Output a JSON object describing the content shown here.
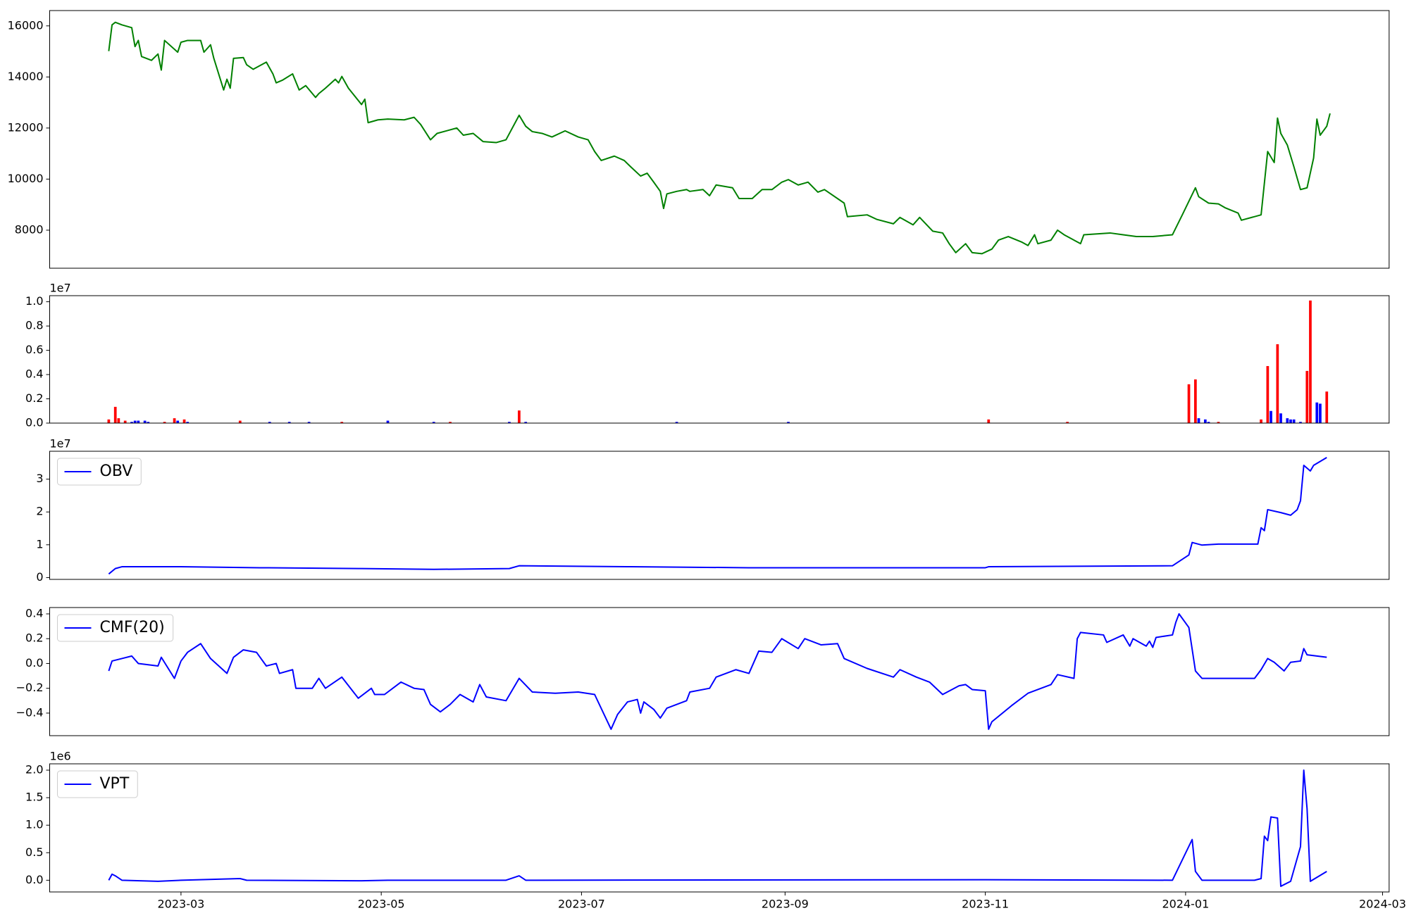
{
  "chart_data": {
    "type": "panels",
    "xlim": [
      19377,
      19785
    ],
    "xticks": [
      {
        "value": 19417,
        "label": "2023-03"
      },
      {
        "value": 19478,
        "label": "2023-05"
      },
      {
        "value": 19539,
        "label": "2023-07"
      },
      {
        "value": 19601,
        "label": "2023-09"
      },
      {
        "value": 19662,
        "label": "2023-11"
      },
      {
        "value": 19723,
        "label": "2024-01"
      },
      {
        "value": 19783,
        "label": "2024-03"
      }
    ],
    "panels": [
      {
        "type": "line",
        "x": [
          19395,
          19396,
          19397,
          19399,
          19402,
          19403,
          19404,
          19405,
          19408,
          19410,
          19411,
          19412,
          19416,
          19417,
          19419,
          19423,
          19424,
          19426,
          19427,
          19430,
          19431,
          19432,
          19433,
          19436,
          19437,
          19439,
          19443,
          19445,
          19446,
          19448,
          19451,
          19453,
          19455,
          19458,
          19459,
          19461,
          19464,
          19465,
          19466,
          19468,
          19472,
          19473,
          19474,
          19477,
          19480,
          19485,
          19488,
          19490,
          19493,
          19495,
          19501,
          19503,
          19506,
          19509,
          19513,
          19516,
          19520,
          19522,
          19524,
          19527,
          19530,
          19534,
          19538,
          19541,
          19543,
          19545,
          19549,
          19552,
          19554,
          19557,
          19559,
          19561,
          19563,
          19564,
          19565,
          19568,
          19571,
          19572,
          19576,
          19578,
          19580,
          19585,
          19587,
          19591,
          19594,
          19597,
          19600,
          19602,
          19605,
          19608,
          19611,
          19613,
          19619,
          19620,
          19626,
          19629,
          19634,
          19636,
          19640,
          19642,
          19646,
          19649,
          19651,
          19653,
          19656,
          19658,
          19661,
          19664,
          19666,
          19669,
          19673,
          19675,
          19677,
          19678,
          19682,
          19684,
          19686,
          19691,
          19692,
          19700,
          19704,
          19708,
          19713,
          19719,
          19722,
          19726,
          19727,
          19730,
          19733,
          19735,
          19739,
          19740,
          19746,
          19748,
          19750,
          19751,
          19752,
          19754,
          19756,
          19758,
          19760,
          19762,
          19763,
          19764,
          19766,
          19767
        ],
        "series": [
          {
            "color": "#008000",
            "values": [
              15010,
              16040,
              16140,
              16040,
              15930,
              15190,
              15430,
              14800,
              14650,
              14900,
              14270,
              15430,
              14970,
              15360,
              15430,
              15430,
              14970,
              15260,
              14730,
              13490,
              13910,
              13560,
              14730,
              14760,
              14480,
              14300,
              14580,
              14120,
              13770,
              13880,
              14120,
              13490,
              13660,
              13200,
              13350,
              13560,
              13910,
              13770,
              14020,
              13560,
              12920,
              13130,
              12210,
              12320,
              12350,
              12320,
              12420,
              12140,
              11540,
              11790,
              12000,
              11720,
              11790,
              11470,
              11430,
              11540,
              12500,
              12070,
              11860,
              11790,
              11650,
              11890,
              11650,
              11540,
              11080,
              10730,
              10900,
              10730,
              10480,
              10120,
              10230,
              9880,
              9520,
              8850,
              9420,
              9520,
              9590,
              9520,
              9590,
              9350,
              9770,
              9660,
              9240,
              9240,
              9590,
              9590,
              9880,
              9980,
              9770,
              9880,
              9490,
              9590,
              9060,
              8530,
              8600,
              8420,
              8250,
              8500,
              8210,
              8500,
              7960,
              7890,
              7470,
              7120,
              7470,
              7120,
              7080,
              7260,
              7610,
              7750,
              7540,
              7400,
              7820,
              7470,
              7610,
              8000,
              7820,
              7470,
              7820,
              7890,
              7820,
              7750,
              7750,
              7820,
              8600,
              9660,
              9310,
              9060,
              9030,
              8880,
              8670,
              8390,
              8600,
              11080,
              10650,
              12390,
              11790,
              11330,
              10480,
              9590,
              9660,
              10830,
              12350,
              11720,
              12070,
              12570
            ]
          }
        ],
        "ylim": [
          6510,
          16600
        ],
        "yticks": [
          8000,
          10000,
          12000,
          14000,
          16000
        ]
      },
      {
        "type": "bar",
        "x": [
          19395,
          19397,
          19398,
          19400,
          19402,
          19403,
          19404,
          19406,
          19407,
          19412,
          19415,
          19416,
          19418,
          19419,
          19435,
          19444,
          19450,
          19456,
          19466,
          19480,
          19494,
          19499,
          19517,
          19520,
          19522,
          19568,
          19602,
          19663,
          19687,
          19724,
          19726,
          19727,
          19729,
          19730,
          19733,
          19746,
          19748,
          19749,
          19751,
          19752,
          19754,
          19755,
          19756,
          19758,
          19760,
          19761,
          19763,
          19764,
          19766
        ],
        "values": [
          300000,
          1340000,
          400000,
          200000,
          100000,
          200000,
          200000,
          200000,
          100000,
          100000,
          400000,
          200000,
          300000,
          100000,
          200000,
          100000,
          100000,
          100000,
          100000,
          200000,
          100000,
          100000,
          100000,
          1040000,
          100000,
          100000,
          100000,
          300000,
          100000,
          3200000,
          3600000,
          400000,
          300000,
          100000,
          100000,
          300000,
          4700000,
          1000000,
          6500000,
          800000,
          400000,
          300000,
          300000,
          100000,
          4300000,
          10100000,
          1700000,
          1600000,
          2600000
        ],
        "colors": [
          "red",
          "red",
          "red",
          "red",
          "blue",
          "blue",
          "blue",
          "blue",
          "blue",
          "red",
          "red",
          "blue",
          "red",
          "blue",
          "red",
          "blue",
          "blue",
          "blue",
          "red",
          "blue",
          "blue",
          "red",
          "blue",
          "red",
          "blue",
          "blue",
          "blue",
          "red",
          "red",
          "red",
          "red",
          "blue",
          "blue",
          "blue",
          "red",
          "red",
          "red",
          "blue",
          "red",
          "blue",
          "blue",
          "blue",
          "blue",
          "blue",
          "red",
          "red",
          "blue",
          "blue",
          "red"
        ],
        "ylim": [
          0,
          10500000
        ],
        "offset_label": "1e7",
        "yticks": [
          {
            "value": 0,
            "label": "0.0"
          },
          {
            "value": 2000000,
            "label": "0.2"
          },
          {
            "value": 4000000,
            "label": "0.4"
          },
          {
            "value": 6000000,
            "label": "0.6"
          },
          {
            "value": 8000000,
            "label": "0.8"
          },
          {
            "value": 10000000,
            "label": "1.0"
          }
        ]
      },
      {
        "type": "line",
        "legend": "upper left",
        "offset_label": "1e7",
        "x": [
          19395,
          19397,
          19399,
          19417,
          19441,
          19472,
          19494,
          19517,
          19520,
          19554,
          19590,
          19662,
          19663,
          19719,
          19724,
          19725,
          19728,
          19733,
          19745,
          19746,
          19747,
          19748,
          19752,
          19755,
          19757,
          19758,
          19759,
          19761,
          19762,
          19766
        ],
        "series": [
          {
            "name": "OBV",
            "color": "#0000ff",
            "values": [
              1100000,
              2750000,
              3300000,
              3300000,
              3000000,
              2750000,
              2500000,
              2750000,
              3600000,
              3300000,
              3000000,
              3000000,
              3300000,
              3600000,
              6900000,
              10700000,
              9900000,
              10200000,
              10200000,
              15200000,
              14300000,
              20700000,
              19800000,
              19000000,
              20700000,
              23400000,
              34200000,
              32500000,
              34200000,
              36600000
            ]
          }
        ],
        "ylim": [
          -550000,
          38500000
        ],
        "yticks": [
          0,
          {
            "value": 10000000,
            "label": "1"
          },
          {
            "value": 20000000,
            "label": "2"
          },
          {
            "value": 30000000,
            "label": "3"
          }
        ]
      },
      {
        "type": "line",
        "legend": "upper left",
        "x": [
          19395,
          19396,
          19399,
          19402,
          19404,
          19410,
          19411,
          19415,
          19417,
          19419,
          19423,
          19426,
          19431,
          19433,
          19436,
          19440,
          19443,
          19446,
          19447,
          19451,
          19452,
          19457,
          19459,
          19461,
          19466,
          19471,
          19475,
          19476,
          19479,
          19484,
          19488,
          19491,
          19493,
          19496,
          19499,
          19502,
          19506,
          19508,
          19510,
          19516,
          19520,
          19524,
          19531,
          19538,
          19543,
          19548,
          19550,
          19553,
          19556,
          19557,
          19558,
          19561,
          19563,
          19565,
          19571,
          19572,
          19578,
          19580,
          19586,
          19590,
          19593,
          19597,
          19600,
          19605,
          19607,
          19612,
          19617,
          19619,
          19626,
          19634,
          19636,
          19641,
          19645,
          19649,
          19654,
          19656,
          19658,
          19662,
          19663,
          19664,
          19670,
          19675,
          19682,
          19684,
          19689,
          19690,
          19691,
          19698,
          19699,
          19704,
          19706,
          19707,
          19711,
          19712,
          19713,
          19714,
          19719,
          19720,
          19721,
          19724,
          19726,
          19728,
          19744,
          19746,
          19748,
          19750,
          19753,
          19755,
          19758,
          19759,
          19760,
          19766
        ],
        "series": [
          {
            "name": "CMF(20)",
            "color": "#0000ff",
            "values": [
              -0.06,
              0.02,
              0.04,
              0.06,
              0,
              -0.02,
              0.05,
              -0.12,
              0.02,
              0.09,
              0.16,
              0.04,
              -0.08,
              0.05,
              0.11,
              0.09,
              -0.02,
              0,
              -0.08,
              -0.05,
              -0.2,
              -0.2,
              -0.12,
              -0.2,
              -0.11,
              -0.28,
              -0.2,
              -0.25,
              -0.25,
              -0.15,
              -0.2,
              -0.21,
              -0.33,
              -0.39,
              -0.33,
              -0.25,
              -0.31,
              -0.17,
              -0.27,
              -0.3,
              -0.12,
              -0.23,
              -0.24,
              -0.23,
              -0.25,
              -0.53,
              -0.41,
              -0.31,
              -0.29,
              -0.4,
              -0.31,
              -0.37,
              -0.44,
              -0.36,
              -0.3,
              -0.23,
              -0.2,
              -0.11,
              -0.05,
              -0.08,
              0.1,
              0.09,
              0.2,
              0.12,
              0.2,
              0.15,
              0.16,
              0.04,
              -0.04,
              -0.11,
              -0.05,
              -0.11,
              -0.15,
              -0.25,
              -0.18,
              -0.17,
              -0.21,
              -0.22,
              -0.53,
              -0.47,
              -0.34,
              -0.24,
              -0.17,
              -0.09,
              -0.12,
              0.2,
              0.25,
              0.23,
              0.17,
              0.23,
              0.14,
              0.2,
              0.14,
              0.18,
              0.13,
              0.21,
              0.23,
              0.33,
              0.4,
              0.29,
              -0.06,
              -0.12,
              -0.12,
              -0.05,
              0.04,
              0.01,
              -0.06,
              0.01,
              0.02,
              0.12,
              0.07,
              0.05
            ]
          }
        ],
        "ylim": [
          -0.582,
          0.451
        ],
        "yticks": [
          {
            "value": -0.4,
            "label": "−0.4"
          },
          {
            "value": -0.2,
            "label": "−0.2"
          },
          {
            "value": 0,
            "label": "0.0"
          },
          0.2,
          0.4
        ]
      },
      {
        "type": "line",
        "legend": "upper left",
        "offset_label": "1e6",
        "x": [
          19395,
          19396,
          19397,
          19399,
          19410,
          19417,
          19435,
          19437,
          19472,
          19480,
          19516,
          19520,
          19522,
          19662,
          19719,
          19725,
          19726,
          19728,
          19744,
          19746,
          19747,
          19748,
          19749,
          19751,
          19752,
          19755,
          19758,
          19759,
          19760,
          19761,
          19766
        ],
        "series": [
          {
            "name": "VPT",
            "color": "#0000ff",
            "values": [
              0,
              110000,
              80000,
              0,
              -20000,
              0,
              30000,
              0,
              -10000,
              0,
              0,
              80000,
              0,
              10000,
              0,
              740000,
              160000,
              0,
              0,
              30000,
              800000,
              720000,
              1150000,
              1130000,
              -110000,
              -20000,
              610000,
              2000000,
              1300000,
              -20000,
              160000
            ]
          }
        ],
        "ylim": [
          -213000,
          2115000
        ],
        "yticks": [
          {
            "value": 0,
            "label": "0.0"
          },
          {
            "value": 500000,
            "label": "0.5"
          },
          {
            "value": 1000000,
            "label": "1.0"
          },
          {
            "value": 1500000,
            "label": "1.5"
          },
          {
            "value": 2000000,
            "label": "2.0"
          }
        ]
      }
    ]
  }
}
